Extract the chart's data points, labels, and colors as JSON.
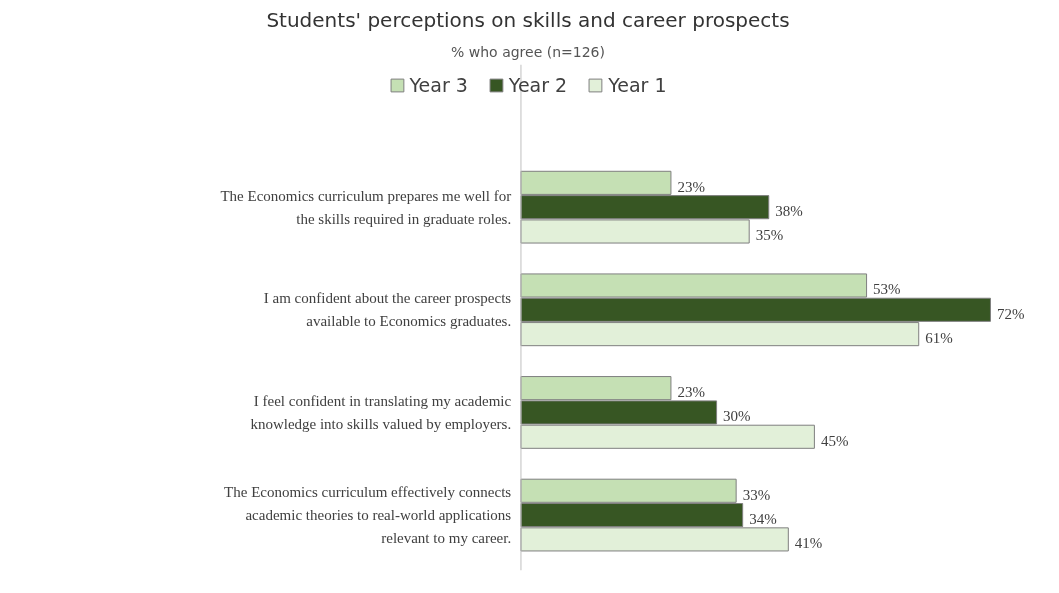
{
  "chart_data": {
    "type": "bar",
    "orientation": "horizontal",
    "title": "Students' perceptions on skills and career prospects",
    "subtitle": "% who agree (n=126)",
    "categories": [
      "The Economics curriculum prepares me well for the skills required in graduate roles.",
      "I am confident about the career prospects available to Economics graduates.",
      "I feel confident in translating my academic knowledge into skills valued by employers.",
      "The Economics curriculum effectively connects academic theories to real-world applications relevant to my career."
    ],
    "series": [
      {
        "name": "Year 3",
        "color": "#c5e0b4",
        "values": [
          23,
          53,
          23,
          33
        ],
        "value_labels": [
          "23%",
          "53%",
          "23%",
          "33%"
        ]
      },
      {
        "name": "Year 2",
        "color": "#375623",
        "values": [
          38,
          72,
          30,
          34
        ],
        "value_labels": [
          "38%",
          "72%",
          "30%",
          "34%"
        ]
      },
      {
        "name": "Year 1",
        "color": "#e2f0d9",
        "values": [
          35,
          61,
          45,
          41
        ],
        "value_labels": [
          "35%",
          "61%",
          "45%",
          "41%"
        ]
      }
    ],
    "legend": "top"
  }
}
